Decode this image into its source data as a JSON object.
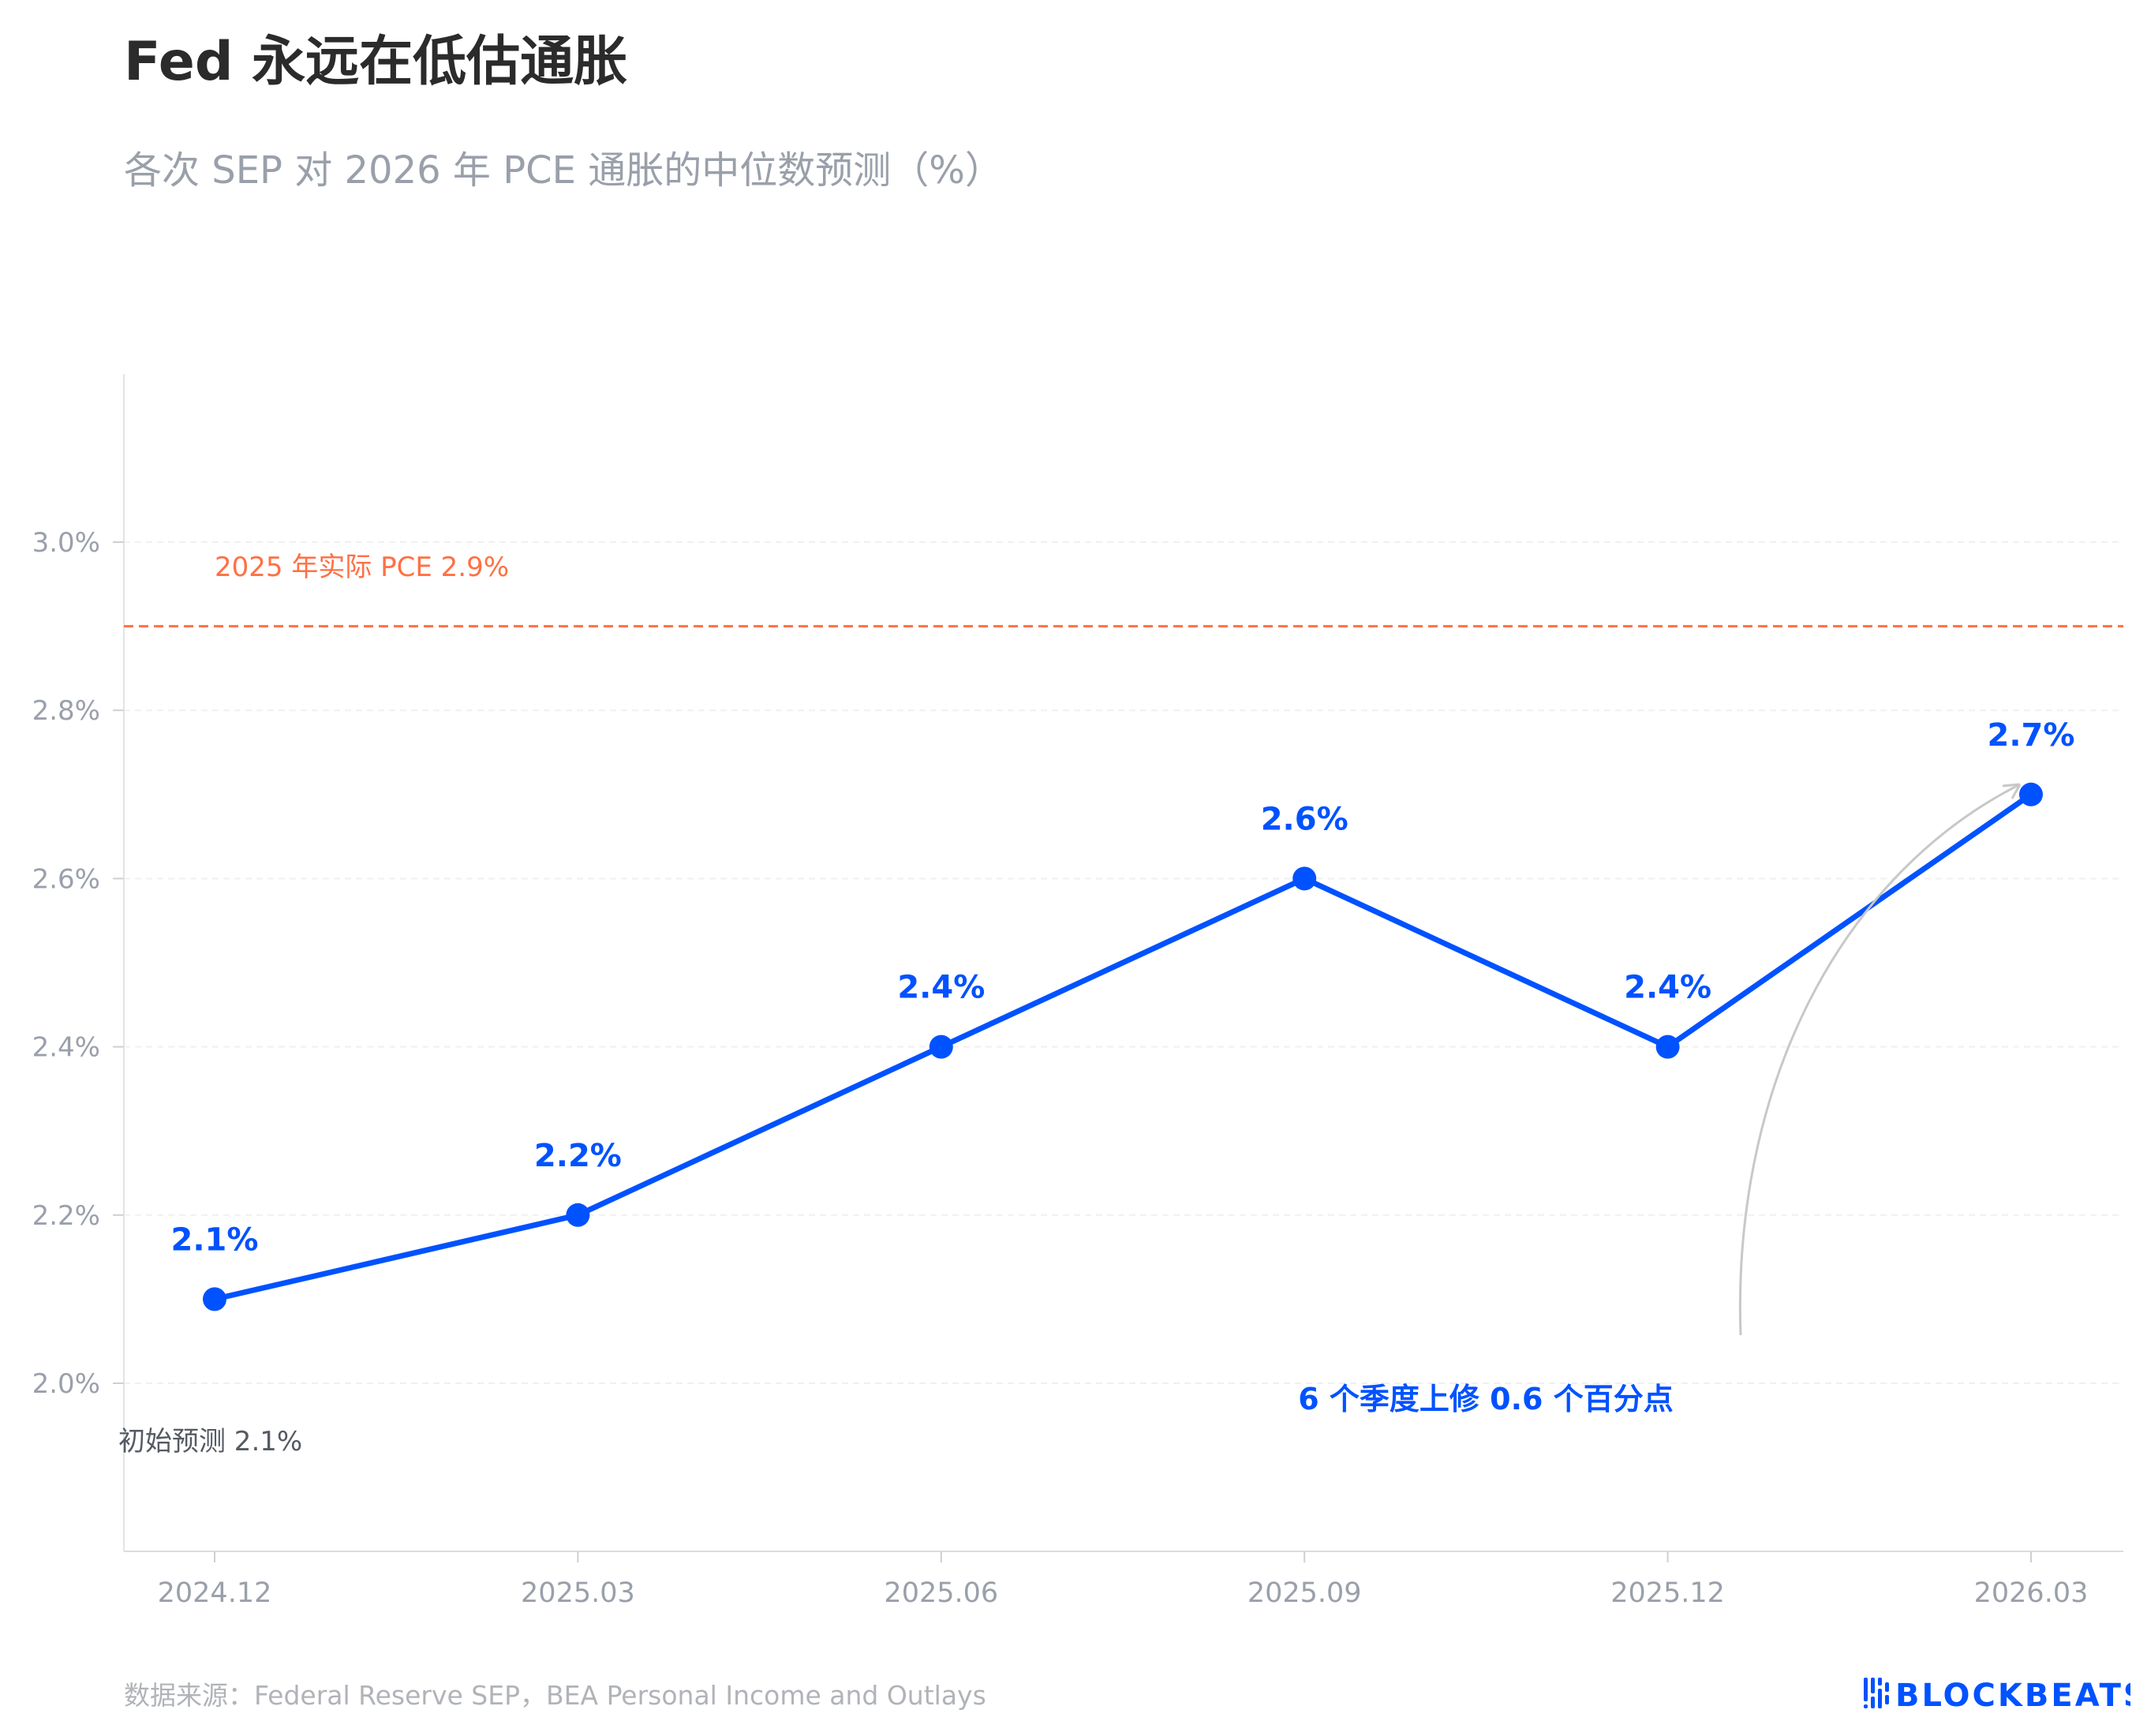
{
  "title": "Fed 永远在低估通胀",
  "subtitle": "各次 SEP 对 2026 年 PCE 通胀的中位数预测（%）",
  "source": "数据来源：Federal Reserve SEP，BEA Personal Income and Outlays",
  "logo": "BLOCKBEATS",
  "colors": {
    "line": "#0052ff",
    "reference": "#ff7043",
    "axis_text": "#9aa0aa",
    "arrow": "#c8c8c8"
  },
  "chart_data": {
    "type": "line",
    "categories": [
      "2024.12",
      "2025.03",
      "2025.06",
      "2025.09",
      "2025.12",
      "2026.03"
    ],
    "series": [
      {
        "values": [
          2.1,
          2.2,
          2.4,
          2.6,
          2.4,
          2.7
        ]
      }
    ],
    "data_labels": [
      "2.1%",
      "2.2%",
      "2.4%",
      "2.6%",
      "2.4%",
      "2.7%"
    ],
    "yticks": [
      2.0,
      2.2,
      2.4,
      2.6,
      2.8,
      3.0
    ],
    "ytick_labels": [
      "2.0%",
      "2.2%",
      "2.4%",
      "2.6%",
      "2.8%",
      "3.0%"
    ],
    "ylim": [
      1.8,
      3.2
    ],
    "grid": "horizontal, faint",
    "reference_line": {
      "value": 2.9,
      "label": "2025 年实际 PCE 2.9%",
      "style": "dashed"
    },
    "annotations": [
      {
        "text": "初始预测 2.1%"
      },
      {
        "text": "6 个季度上修 0.6 个百分点",
        "arrow_to": "2026.03"
      }
    ]
  }
}
